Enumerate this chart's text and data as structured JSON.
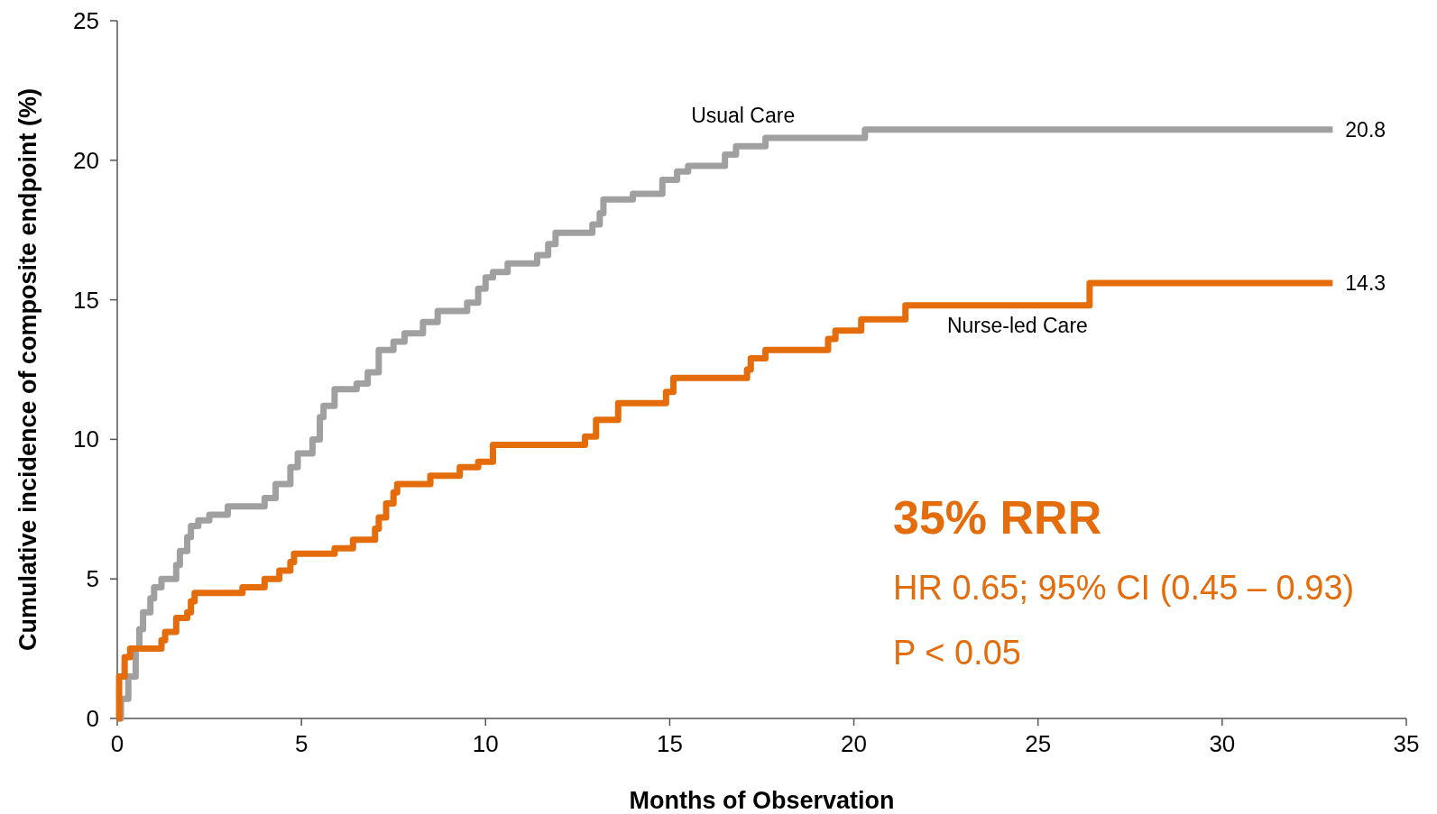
{
  "chart_data": {
    "type": "step",
    "xlabel": "Months of Observation",
    "ylabel": "Cumulative incidence of composite endpoint (%)",
    "xlim": [
      0,
      35
    ],
    "xticks": [
      0,
      5,
      10,
      15,
      20,
      25,
      30,
      35
    ],
    "ylim": [
      0,
      25
    ],
    "yticks": [
      0,
      5,
      10,
      15,
      20,
      25
    ],
    "grid": false,
    "series": [
      {
        "name": "Usual Care",
        "color": "#a0a0a0",
        "x": [
          0,
          0.1,
          0.3,
          0.5,
          0.6,
          0.7,
          0.9,
          1.0,
          1.2,
          1.6,
          1.7,
          1.9,
          2.0,
          2.2,
          2.5,
          3.0,
          4.0,
          4.3,
          4.7,
          4.9,
          5.3,
          5.5,
          5.6,
          5.9,
          6.5,
          6.8,
          7.1,
          7.5,
          7.8,
          8.3,
          8.7,
          9.5,
          9.8,
          10.0,
          10.2,
          10.6,
          11.4,
          11.7,
          11.9,
          12.9,
          13.1,
          13.2,
          14.0,
          14.8,
          15.2,
          15.5,
          16.5,
          16.8,
          17.6,
          20.3,
          33.0
        ],
        "values": [
          0,
          0.7,
          1.5,
          2.5,
          3.2,
          3.8,
          4.3,
          4.7,
          5.0,
          5.5,
          6.0,
          6.5,
          6.9,
          7.1,
          7.3,
          7.6,
          7.9,
          8.4,
          9.0,
          9.5,
          10.0,
          10.8,
          11.2,
          11.8,
          12.0,
          12.4,
          13.2,
          13.5,
          13.8,
          14.2,
          14.6,
          14.9,
          15.4,
          15.8,
          16.0,
          16.3,
          16.6,
          17.0,
          17.4,
          17.7,
          18.1,
          18.6,
          18.8,
          19.3,
          19.6,
          19.8,
          20.2,
          20.5,
          20.8,
          21.1,
          21.1
        ]
      },
      {
        "name": "Nurse-led Care",
        "color": "#e46c0a",
        "x": [
          0,
          0.05,
          0.2,
          0.35,
          1.2,
          1.3,
          1.6,
          1.9,
          2.0,
          2.1,
          3.4,
          4.0,
          4.4,
          4.7,
          4.8,
          5.9,
          6.4,
          7.0,
          7.1,
          7.3,
          7.5,
          7.6,
          8.5,
          9.3,
          9.8,
          10.2,
          12.7,
          13.0,
          13.6,
          14.9,
          15.1,
          17.1,
          17.2,
          17.6,
          19.3,
          19.5,
          20.2,
          21.4,
          26.4,
          33.0
        ],
        "values": [
          0,
          1.5,
          2.2,
          2.5,
          2.8,
          3.1,
          3.6,
          3.8,
          4.2,
          4.5,
          4.7,
          5.0,
          5.3,
          5.6,
          5.9,
          6.1,
          6.4,
          6.8,
          7.2,
          7.7,
          8.1,
          8.4,
          8.7,
          9.0,
          9.2,
          9.8,
          10.1,
          10.7,
          11.3,
          11.7,
          12.2,
          12.5,
          12.9,
          13.2,
          13.6,
          13.9,
          14.3,
          14.8,
          15.6,
          15.6
        ]
      }
    ],
    "annotations": [
      {
        "text": "20.8",
        "x": 33,
        "y": 21.1
      },
      {
        "text": "14.3",
        "x": 33,
        "y": 15.6
      },
      "35% RRR",
      "HR 0.65; 95% CI (0.45 – 0.93)",
      "P < 0.05"
    ]
  }
}
